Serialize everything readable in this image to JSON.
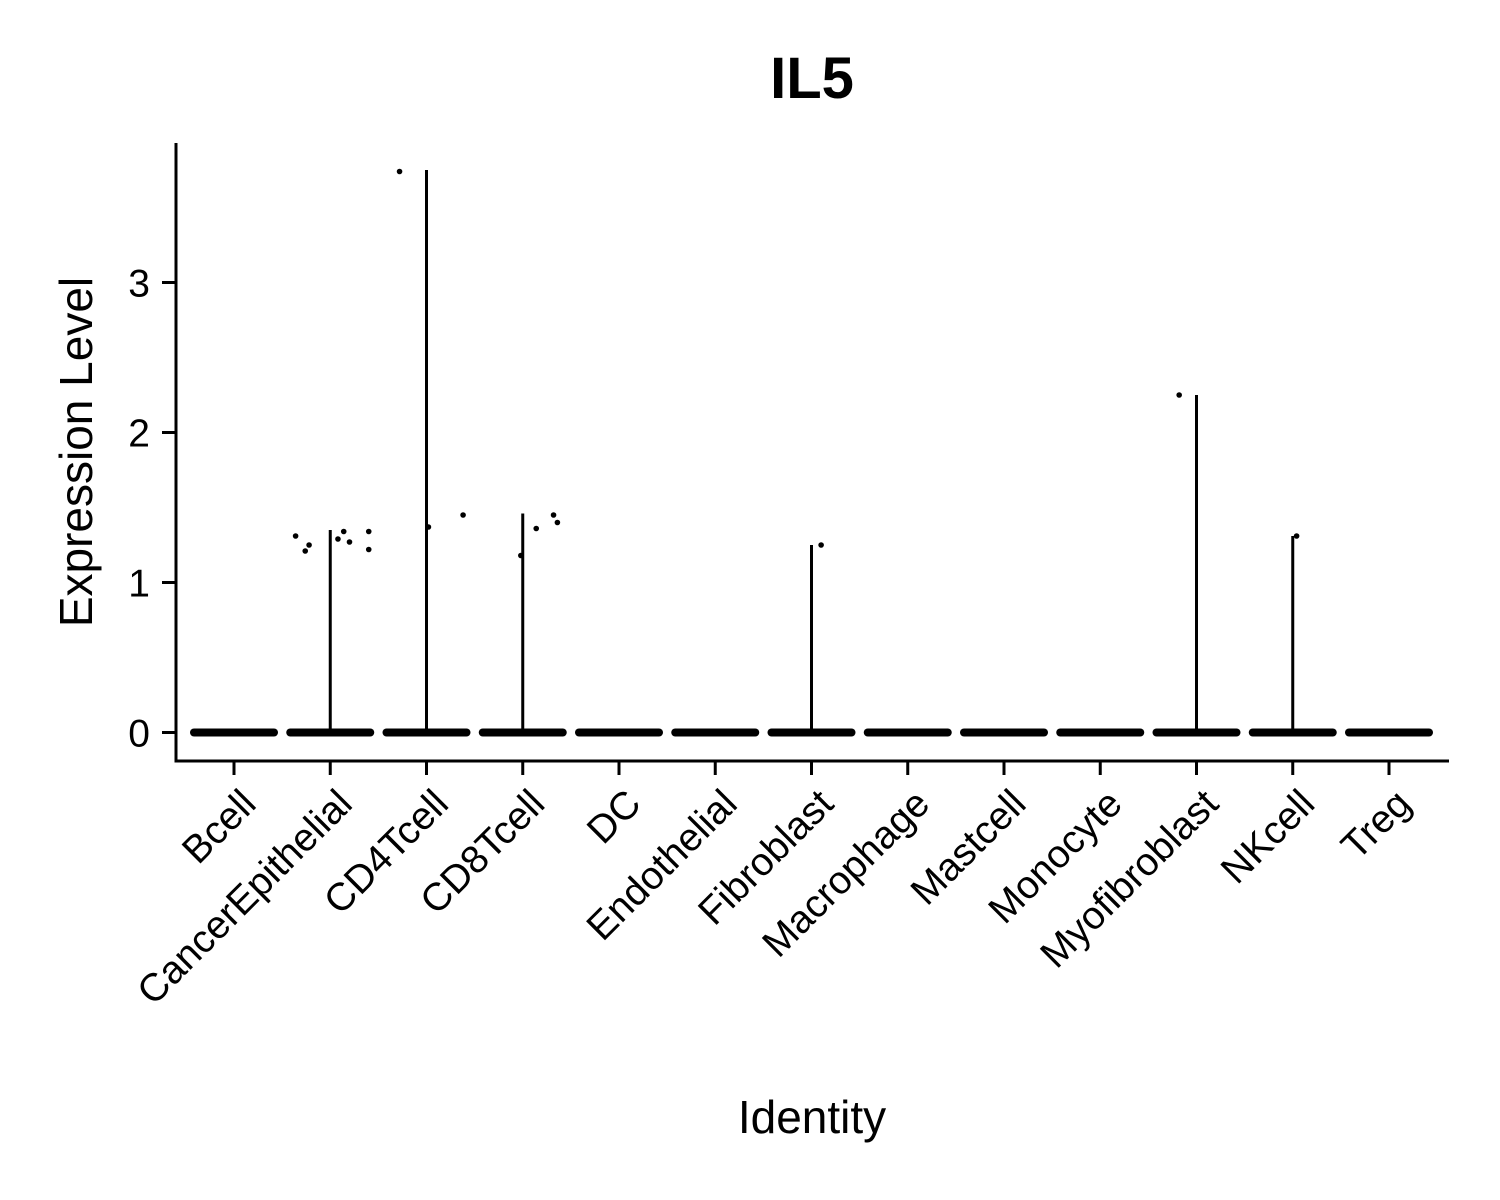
{
  "chart_data": {
    "type": "violin",
    "title": "IL5",
    "xlabel": "Identity",
    "ylabel": "Expression Level",
    "ylim": [
      -0.19,
      3.93
    ],
    "yticks": [
      0,
      1,
      2,
      3
    ],
    "grid": false,
    "legend": "none",
    "categories": [
      "Bcell",
      "CancerEpithelial",
      "CD4Tcell",
      "CD8Tcell",
      "DC",
      "Endothelial",
      "Fibroblast",
      "Macrophage",
      "Mastcell",
      "Monocyte",
      "Myofibroblast",
      "NKcell",
      "Treg"
    ],
    "max_values": [
      0,
      1.35,
      3.75,
      1.46,
      0,
      0,
      1.25,
      0,
      0,
      0,
      2.25,
      1.31,
      0
    ],
    "points": [
      {
        "category": "CancerEpithelial",
        "offset": -0.36,
        "y": 1.31
      },
      {
        "category": "CancerEpithelial",
        "offset": -0.26,
        "y": 1.21
      },
      {
        "category": "CancerEpithelial",
        "offset": -0.22,
        "y": 1.25
      },
      {
        "category": "CancerEpithelial",
        "offset": 0.08,
        "y": 1.29
      },
      {
        "category": "CancerEpithelial",
        "offset": 0.14,
        "y": 1.34
      },
      {
        "category": "CancerEpithelial",
        "offset": 0.2,
        "y": 1.27
      },
      {
        "category": "CancerEpithelial",
        "offset": 0.4,
        "y": 1.34
      },
      {
        "category": "CancerEpithelial",
        "offset": 0.4,
        "y": 1.22
      },
      {
        "category": "CD4Tcell",
        "offset": -0.28,
        "y": 3.74
      },
      {
        "category": "CD4Tcell",
        "offset": 0.02,
        "y": 1.37
      },
      {
        "category": "CD4Tcell",
        "offset": 0.38,
        "y": 1.45
      },
      {
        "category": "CD8Tcell",
        "offset": -0.02,
        "y": 1.18
      },
      {
        "category": "CD8Tcell",
        "offset": 0.14,
        "y": 1.36
      },
      {
        "category": "CD8Tcell",
        "offset": 0.32,
        "y": 1.45
      },
      {
        "category": "CD8Tcell",
        "offset": 0.36,
        "y": 1.4
      },
      {
        "category": "Fibroblast",
        "offset": 0.1,
        "y": 1.25
      },
      {
        "category": "Myofibroblast",
        "offset": -0.18,
        "y": 2.25
      },
      {
        "category": "NKcell",
        "offset": 0.04,
        "y": 1.31
      }
    ]
  }
}
